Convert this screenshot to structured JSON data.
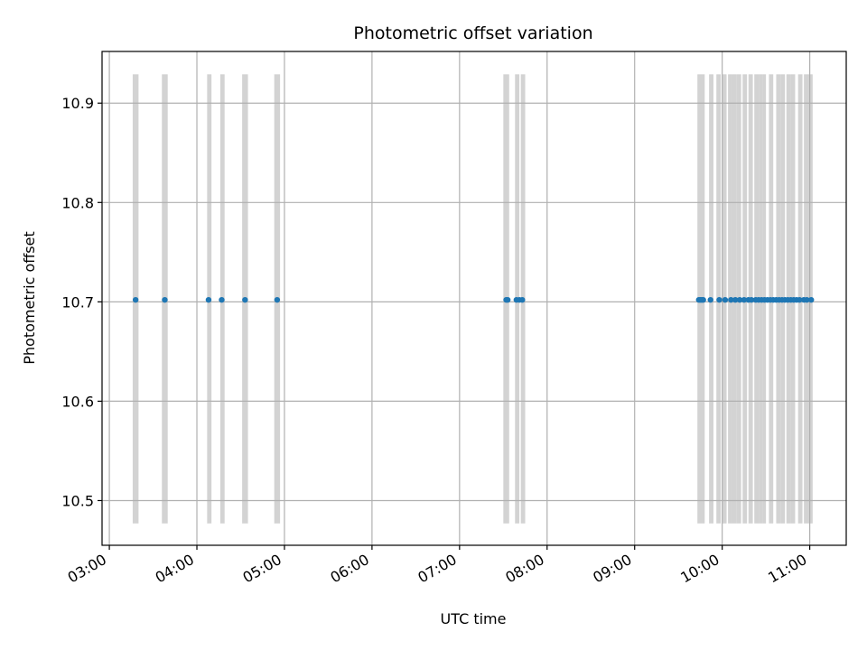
{
  "chart_data": {
    "type": "scatter",
    "title": "Photometric offset variation",
    "xlabel": "UTC time",
    "ylabel": "Photometric offset",
    "x_ticks": [
      "03:00",
      "04:00",
      "05:00",
      "06:00",
      "07:00",
      "08:00",
      "09:00",
      "10:00",
      "11:00"
    ],
    "y_ticks": [
      "10.5",
      "10.6",
      "10.7",
      "10.8",
      "10.9"
    ],
    "xlim": [
      "02:55",
      "11:25"
    ],
    "ylim": [
      10.455,
      10.952
    ],
    "grid": true,
    "colors": {
      "points": "#1f77b4",
      "exposures": "#d3d3d3",
      "grid": "#b0b0b0"
    },
    "exposure_band": {
      "ymin": 10.477,
      "ymax": 10.929
    },
    "exposure_spans": [
      [
        "03:16",
        "03:20"
      ],
      [
        "03:36",
        "03:40"
      ],
      [
        "04:07",
        "04:10"
      ],
      [
        "04:16",
        "04:19"
      ],
      [
        "04:31",
        "04:35"
      ],
      [
        "04:53",
        "04:57"
      ],
      [
        "07:30",
        "07:34"
      ],
      [
        "07:38",
        "07:41"
      ],
      [
        "07:42",
        "07:45"
      ],
      [
        "09:43",
        "09:48"
      ],
      [
        "09:51",
        "09:54"
      ],
      [
        "09:56",
        "09:59"
      ],
      [
        "10:00",
        "10:03"
      ],
      [
        "10:04",
        "10:07"
      ],
      [
        "10:07",
        "10:10"
      ],
      [
        "10:10",
        "10:13"
      ],
      [
        "10:14",
        "10:17"
      ],
      [
        "10:18",
        "10:21"
      ],
      [
        "10:22",
        "10:25"
      ],
      [
        "10:25",
        "10:28"
      ],
      [
        "10:28",
        "10:30"
      ],
      [
        "10:32",
        "10:35"
      ],
      [
        "10:37",
        "10:40"
      ],
      [
        "10:40",
        "10:43"
      ],
      [
        "10:44",
        "10:47"
      ],
      [
        "10:47",
        "10:50"
      ],
      [
        "10:52",
        "10:55"
      ],
      [
        "10:56",
        "10:59"
      ],
      [
        "10:59",
        "11:02"
      ]
    ],
    "series": [
      {
        "x": [
          "03:18",
          "03:38",
          "04:08",
          "04:17",
          "04:33",
          "04:55",
          "07:32",
          "07:33",
          "07:39",
          "07:41",
          "07:43",
          "09:44",
          "09:45",
          "09:46",
          "09:47",
          "09:52",
          "09:58",
          "10:02",
          "10:06",
          "10:09",
          "10:12",
          "10:15",
          "10:18",
          "10:20",
          "10:23",
          "10:25",
          "10:27",
          "10:29",
          "10:31",
          "10:33",
          "10:35",
          "10:37",
          "10:39",
          "10:41",
          "10:43",
          "10:45",
          "10:47",
          "10:49",
          "10:51",
          "10:53",
          "10:56",
          "10:58",
          "11:01"
        ],
        "y": [
          10.702,
          10.702,
          10.702,
          10.702,
          10.702,
          10.702,
          10.702,
          10.702,
          10.702,
          10.702,
          10.702,
          10.702,
          10.702,
          10.702,
          10.702,
          10.702,
          10.702,
          10.702,
          10.702,
          10.702,
          10.702,
          10.702,
          10.702,
          10.702,
          10.702,
          10.702,
          10.702,
          10.702,
          10.702,
          10.702,
          10.702,
          10.702,
          10.702,
          10.702,
          10.702,
          10.702,
          10.702,
          10.702,
          10.702,
          10.702,
          10.702,
          10.702,
          10.702
        ]
      }
    ]
  }
}
